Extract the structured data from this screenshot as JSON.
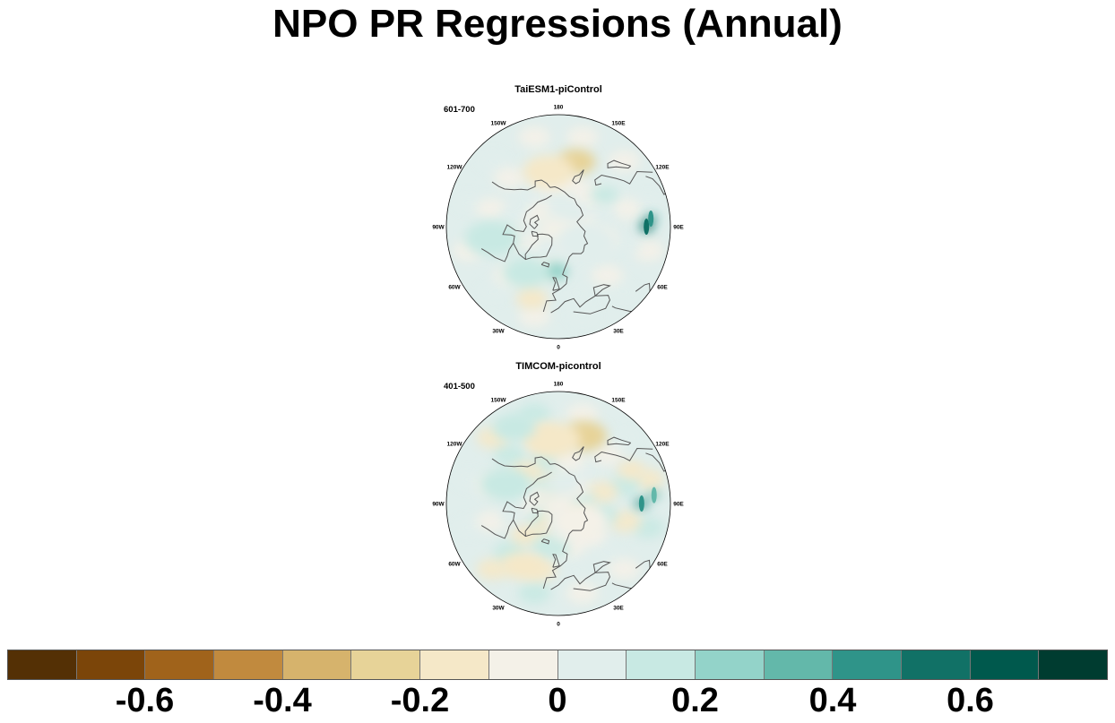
{
  "title": "NPO PR Regressions (Annual)",
  "panels": [
    {
      "model": "TaiESM1-piControl",
      "years": "601-700",
      "anomalies": [
        {
          "lon": 165,
          "lat": 48,
          "value": -0.22,
          "spread": 1.0
        },
        {
          "lon": -170,
          "lat": 55,
          "value": -0.12,
          "spread": 1.3
        },
        {
          "lon": 90,
          "lat": 35,
          "value": 0.6,
          "spread": 0.35
        },
        {
          "lon": 95,
          "lat": 32,
          "value": 0.45,
          "spread": 0.3
        },
        {
          "lon": -5,
          "lat": 62,
          "value": 0.22,
          "spread": 0.7
        },
        {
          "lon": -35,
          "lat": 55,
          "value": 0.12,
          "spread": 1.2
        },
        {
          "lon": -20,
          "lat": 42,
          "value": -0.12,
          "spread": 0.8
        },
        {
          "lon": -80,
          "lat": 48,
          "value": 0.1,
          "spread": 1.4
        },
        {
          "lon": 60,
          "lat": 70,
          "value": 0.08,
          "spread": 1.5
        },
        {
          "lon": 125,
          "lat": 55,
          "value": 0.14,
          "spread": 0.7
        }
      ]
    },
    {
      "model": "TIMCOM-picontrol",
      "years": "401-500",
      "anomalies": [
        {
          "lon": 160,
          "lat": 45,
          "value": -0.3,
          "spread": 1.2
        },
        {
          "lon": -175,
          "lat": 50,
          "value": -0.15,
          "spread": 1.4
        },
        {
          "lon": 90,
          "lat": 38,
          "value": 0.42,
          "spread": 0.35
        },
        {
          "lon": 95,
          "lat": 30,
          "value": 0.32,
          "spread": 0.3
        },
        {
          "lon": 115,
          "lat": 40,
          "value": -0.16,
          "spread": 0.7
        },
        {
          "lon": 0,
          "lat": 62,
          "value": 0.18,
          "spread": 0.6
        },
        {
          "lon": -30,
          "lat": 45,
          "value": -0.12,
          "spread": 1.1
        },
        {
          "lon": -110,
          "lat": 55,
          "value": 0.12,
          "spread": 1.3
        },
        {
          "lon": 50,
          "lat": 72,
          "value": -0.08,
          "spread": 1.4
        },
        {
          "lon": -150,
          "lat": 35,
          "value": 0.1,
          "spread": 1.1
        }
      ]
    }
  ],
  "lon_labels": [
    "180",
    "150E",
    "120E",
    "90E",
    "60E",
    "30E",
    "0",
    "30W",
    "60W",
    "90W",
    "120W",
    "150W"
  ],
  "colorbar": {
    "colors": [
      "#543005",
      "#7b4509",
      "#a0631b",
      "#c18a3e",
      "#d6b36c",
      "#e7d398",
      "#f5e8c8",
      "#f4f1e8",
      "#e1eeec",
      "#c8e9e3",
      "#93d3c9",
      "#63b8aa",
      "#2f9489",
      "#117166",
      "#00594d",
      "#003c30"
    ],
    "tick_labels": [
      "-0.6",
      "-0.4",
      "-0.2",
      "0",
      "0.2",
      "0.4",
      "0.6"
    ],
    "tick_values": [
      -0.6,
      -0.4,
      -0.2,
      0,
      0.2,
      0.4,
      0.6
    ],
    "range": [
      -0.8,
      0.8
    ]
  }
}
